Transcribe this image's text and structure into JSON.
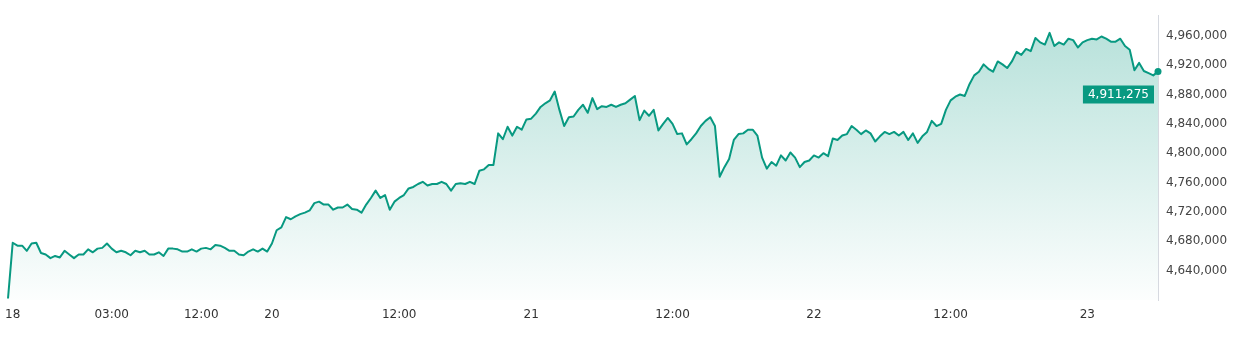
{
  "chart_data": {
    "type": "area",
    "categories": [
      null,
      "18",
      null,
      null,
      null,
      null,
      null,
      null,
      null,
      null,
      null,
      null,
      null,
      null,
      null,
      null,
      null,
      null,
      null,
      null,
      null,
      null,
      "03:00",
      null,
      null,
      null,
      null,
      null,
      null,
      null,
      null,
      null,
      null,
      null,
      null,
      null,
      null,
      null,
      null,
      null,
      null,
      "12:00",
      null,
      null,
      null,
      null,
      null,
      null,
      null,
      null,
      null,
      null,
      null,
      null,
      null,
      null,
      "20",
      null,
      null,
      null,
      null,
      null,
      null,
      null,
      null,
      null,
      null,
      null,
      null,
      null,
      null,
      null,
      null,
      null,
      null,
      null,
      null,
      null,
      null,
      null,
      null,
      null,
      null,
      "12:00",
      null,
      null,
      null,
      null,
      null,
      null,
      null,
      null,
      null,
      null,
      null,
      null,
      null,
      null,
      null,
      null,
      null,
      null,
      null,
      null,
      null,
      null,
      null,
      null,
      null,
      null,
      null,
      "21",
      null,
      null,
      null,
      null,
      null,
      null,
      null,
      null,
      null,
      null,
      null,
      null,
      null,
      null,
      null,
      null,
      null,
      null,
      null,
      null,
      null,
      null,
      null,
      null,
      null,
      null,
      null,
      null,
      null,
      "12:00",
      null,
      null,
      null,
      null,
      null,
      null,
      null,
      null,
      null,
      null,
      null,
      null,
      null,
      null,
      null,
      null,
      null,
      null,
      null,
      null,
      null,
      null,
      null,
      null,
      null,
      null,
      null,
      null,
      null,
      "22",
      null,
      null,
      null,
      null,
      null,
      null,
      null,
      null,
      null,
      null,
      null,
      null,
      null,
      null,
      null,
      null,
      null,
      null,
      null,
      null,
      null,
      null,
      null,
      null,
      null,
      null,
      null,
      null,
      "12:00",
      null,
      null,
      null,
      null,
      null,
      null,
      null,
      null,
      null,
      null,
      null,
      null,
      null,
      null,
      null,
      null,
      null,
      null,
      null,
      null,
      null,
      null,
      null,
      null,
      null,
      null,
      null,
      null,
      "23",
      null,
      null,
      null,
      null,
      null,
      null,
      null,
      null,
      null,
      null,
      null,
      null,
      null,
      null,
      null
    ],
    "series": [
      {
        "color": "#089981",
        "values": [
          4602000,
          4678000,
          4674000,
          4674000,
          4667000,
          4677000,
          4678000,
          4664000,
          4662000,
          4657000,
          4660000,
          4658000,
          4667000,
          4662000,
          4657000,
          4662000,
          4662000,
          4669000,
          4665000,
          4670000,
          4671000,
          4677000,
          4670000,
          4665000,
          4667000,
          4665000,
          4661000,
          4667000,
          4665000,
          4667000,
          4662000,
          4662000,
          4665000,
          4660000,
          4670000,
          4670000,
          4669000,
          4666000,
          4666000,
          4669000,
          4666000,
          4670000,
          4671000,
          4669000,
          4675000,
          4674000,
          4671000,
          4667000,
          4667000,
          4662000,
          4661000,
          4666000,
          4669000,
          4666000,
          4670000,
          4666000,
          4677000,
          4695000,
          4699000,
          4713000,
          4710000,
          4714000,
          4717000,
          4719000,
          4722000,
          4732000,
          4734000,
          4730000,
          4730000,
          4723000,
          4726000,
          4726000,
          4730000,
          4724000,
          4723000,
          4719000,
          4730000,
          4739000,
          4749000,
          4739000,
          4743000,
          4723000,
          4734000,
          4739000,
          4743000,
          4752000,
          4754000,
          4758000,
          4761000,
          4756000,
          4758000,
          4758000,
          4761000,
          4758000,
          4749000,
          4758000,
          4759000,
          4758000,
          4761000,
          4758000,
          4776000,
          4778000,
          4784000,
          4784000,
          4827000,
          4819000,
          4836000,
          4824000,
          4836000,
          4832000,
          4846000,
          4847000,
          4854000,
          4863000,
          4868000,
          4872000,
          4884000,
          4859000,
          4837000,
          4849000,
          4850000,
          4859000,
          4866000,
          4855000,
          4875000,
          4860000,
          4864000,
          4863000,
          4866000,
          4863000,
          4866000,
          4868000,
          4873000,
          4878000,
          4845000,
          4858000,
          4851000,
          4859000,
          4831000,
          4840000,
          4848000,
          4840000,
          4826000,
          4827000,
          4812000,
          4819000,
          4827000,
          4837000,
          4844000,
          4849000,
          4837000,
          4768000,
          4781000,
          4792000,
          4818000,
          4826000,
          4827000,
          4832000,
          4832000,
          4824000,
          4794000,
          4779000,
          4788000,
          4783000,
          4797000,
          4790000,
          4801000,
          4794000,
          4781000,
          4788000,
          4790000,
          4797000,
          4794000,
          4800000,
          4796000,
          4820000,
          4818000,
          4824000,
          4826000,
          4837000,
          4832000,
          4826000,
          4831000,
          4827000,
          4816000,
          4823000,
          4829000,
          4826000,
          4829000,
          4824000,
          4829000,
          4818000,
          4827000,
          4814000,
          4823000,
          4829000,
          4844000,
          4837000,
          4840000,
          4859000,
          4872000,
          4877000,
          4880000,
          4878000,
          4894000,
          4906000,
          4911000,
          4921000,
          4915000,
          4911000,
          4925000,
          4921000,
          4916000,
          4925000,
          4938000,
          4934000,
          4942000,
          4939000,
          4957000,
          4951000,
          4948000,
          4964000,
          4946000,
          4951000,
          4948000,
          4956000,
          4954000,
          4944000,
          4951000,
          4954000,
          4956000,
          4955000,
          4959000,
          4956000,
          4952000,
          4952000,
          4956000,
          4946000,
          4941000,
          4913000,
          4923000,
          4912000,
          4909000,
          4906000,
          4911275
        ]
      }
    ],
    "ylim": [
      4600000,
      4988000
    ],
    "yticks": [
      {
        "value": 4640000,
        "label": "4,640,000"
      },
      {
        "value": 4680000,
        "label": "4,680,000"
      },
      {
        "value": 4720000,
        "label": "4,720,000"
      },
      {
        "value": 4760000,
        "label": "4,760,000"
      },
      {
        "value": 4800000,
        "label": "4,800,000"
      },
      {
        "value": 4840000,
        "label": "4,840,000"
      },
      {
        "value": 4880000,
        "label": "4,880,000"
      },
      {
        "value": 4920000,
        "label": "4,920,000"
      },
      {
        "value": 4960000,
        "label": "4,960,000"
      }
    ],
    "annotations": [
      "4,911,275"
    ],
    "grid": false,
    "legend": false,
    "marker": "none",
    "line_style": "solid"
  }
}
